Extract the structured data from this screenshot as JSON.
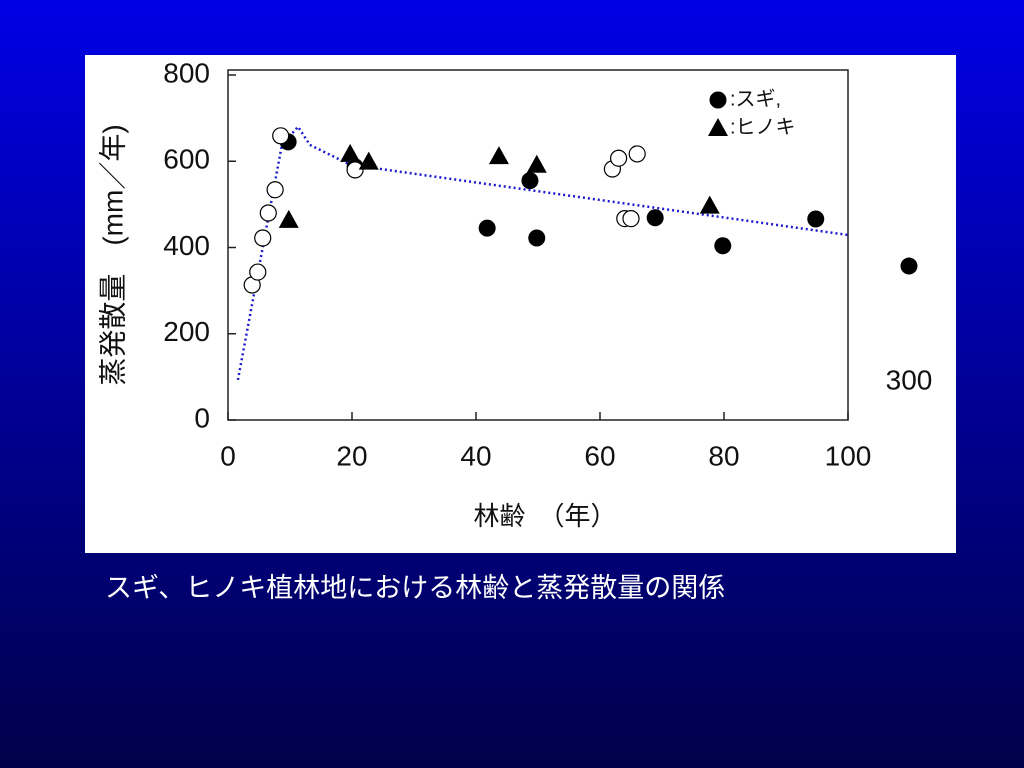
{
  "chart_data": {
    "type": "scatter",
    "caption": "スギ、ヒノキ植林地における林齢と蒸発散量の関係",
    "xlabel": "林齢　（年）",
    "ylabel": "蒸発散量　(mm／年)",
    "xlim": [
      0,
      100
    ],
    "xticks": [
      0,
      20,
      40,
      60,
      80,
      100
    ],
    "ylim": [
      0,
      800
    ],
    "yticks": [
      0,
      200,
      400,
      600,
      800
    ],
    "series": [
      {
        "name": ":スギ,",
        "marker": "circle",
        "color": "#000000",
        "x": [
          9.7,
          20.5,
          41.8,
          48.7,
          49.8,
          68.9,
          79.8,
          94.8
        ],
        "values": [
          645,
          587,
          445,
          555,
          422,
          469,
          404,
          466
        ]
      },
      {
        "marker": "circle-open",
        "color": "#000000",
        "x": [
          3.9,
          4.8,
          5.6,
          6.5,
          7.6,
          8.5,
          20.5,
          62,
          63,
          64,
          65,
          66
        ],
        "values": [
          313,
          343,
          422,
          480,
          534,
          659,
          580,
          582,
          607,
          467,
          467,
          617
        ]
      },
      {
        "name": ":ヒノキ",
        "marker": "triangle",
        "color": "#000000",
        "x": [
          9.8,
          19.7,
          22.7,
          43.7,
          49.8,
          77.7
        ],
        "values": [
          464,
          617,
          599,
          612,
          592,
          497
        ]
      }
    ],
    "outlier": {
      "x": 300,
      "y": 357,
      "label": "300",
      "color": "#000000"
    },
    "trend": {
      "color": "#1a1ad0",
      "x": [
        1.6,
        8.7,
        11.3,
        13.2,
        19.7,
        100
      ],
      "values": [
        93,
        638,
        680,
        638,
        592,
        429
      ]
    }
  }
}
